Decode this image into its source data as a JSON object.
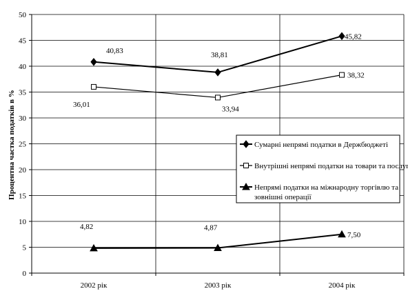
{
  "chart_data": {
    "type": "line",
    "title": "",
    "xlabel": "",
    "ylabel": "Процентна частка податків в %",
    "categories": [
      "2002 рік",
      "2003 рік",
      "2004 рік"
    ],
    "ylim": [
      0,
      50
    ],
    "yticks": [
      "0",
      "5",
      "10",
      "15",
      "20",
      "25",
      "30",
      "35",
      "40",
      "45",
      "50"
    ],
    "grid": true,
    "legend_position": "right",
    "series": [
      {
        "name": "Сумарні непрямі податки в Держбюджеті",
        "marker": "diamond-filled",
        "values": [
          40.83,
          38.81,
          45.82
        ],
        "labels": [
          "40,83",
          "38,81",
          "45,82"
        ]
      },
      {
        "name": "Внутрішні непрямі податки на товари та послуги",
        "marker": "square-open",
        "values": [
          36.01,
          33.94,
          38.32
        ],
        "labels": [
          "36,01",
          "33,94",
          "38,32"
        ]
      },
      {
        "name": "Непрямі податки на міжнародну торгівлю та зовнішні операції",
        "name_lines": [
          "Непрямі податки на міжнародну торгівлю та",
          "зовнішні операції"
        ],
        "marker": "triangle-filled",
        "values": [
          4.82,
          4.87,
          7.5
        ],
        "labels": [
          "4,82",
          "4,87",
          "7,50"
        ]
      }
    ]
  }
}
